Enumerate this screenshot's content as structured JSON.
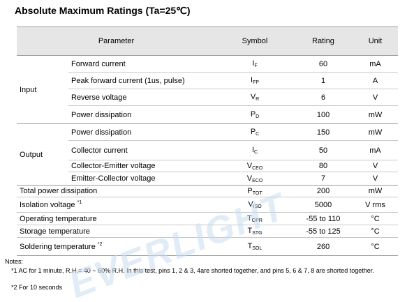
{
  "title": "Absolute Maximum Ratings (Ta=25℃)",
  "headers": {
    "parameter": "Parameter",
    "symbol": "Symbol",
    "rating": "Rating",
    "unit": "Unit"
  },
  "groups": {
    "input": "Input",
    "output": "Output"
  },
  "rows": [
    {
      "param": "Forward current",
      "sym": "I",
      "sub": "F",
      "rating": "60",
      "unit": "mA"
    },
    {
      "param": "Peak forward current (1us, pulse)",
      "sym": "I",
      "sub": "FP",
      "rating": "1",
      "unit": "A"
    },
    {
      "param": "Reverse voltage",
      "sym": "V",
      "sub": "R",
      "rating": "6",
      "unit": "V"
    },
    {
      "param": "Power dissipation",
      "sym": "P",
      "sub": "D",
      "rating": "100",
      "unit": "mW"
    },
    {
      "param": "Power dissipation",
      "sym": "P",
      "sub": "C",
      "rating": "150",
      "unit": "mW"
    },
    {
      "param": "Collector current",
      "sym": "I",
      "sub": "C",
      "rating": "50",
      "unit": "mA"
    },
    {
      "param": "Collector-Emitter voltage",
      "sym": "V",
      "sub": "CEO",
      "rating": "80",
      "unit": "V"
    },
    {
      "param": "Emitter-Collector voltage",
      "sym": "V",
      "sub": "ECO",
      "rating": "7",
      "unit": "V"
    },
    {
      "param": "Total power dissipation",
      "sym": "P",
      "sub": "TOT",
      "rating": "200",
      "unit": "mW"
    },
    {
      "param": "Isolation voltage",
      "sup": "*1",
      "sym": "V",
      "sub": "ISO",
      "rating": "5000",
      "unit": "V rms"
    },
    {
      "param": "Operating temperature",
      "sym": "T",
      "sub": "OPR",
      "rating": "-55 to 110",
      "unit": "°C"
    },
    {
      "param": "Storage temperature",
      "sym": "T",
      "sub": "STG",
      "rating": "-55 to 125",
      "unit": "°C"
    },
    {
      "param": "Soldering temperature",
      "sup": "*2",
      "sym": "T",
      "sub": "SOL",
      "rating": "260",
      "unit": "°C"
    }
  ],
  "notes": {
    "heading": "Notes:",
    "note1": "*1 AC for 1 minute, R.H.= 40 ~ 60% R.H. In this test, pins 1, 2 & 3, 4are shorted together, and pins 5, 6 & 7, 8 are shorted together.",
    "note2": "*2 For 10 seconds"
  },
  "watermark": {
    "text": "EVERLIGHT",
    "color": "#c9dcef"
  }
}
